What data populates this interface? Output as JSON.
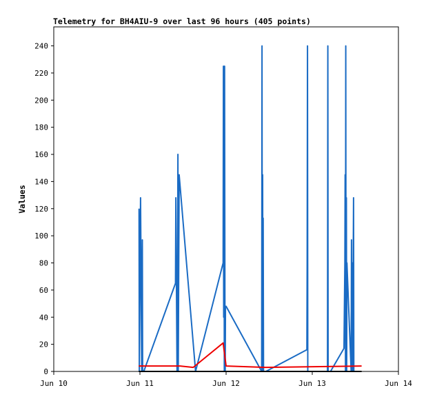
{
  "chart_data": {
    "type": "line",
    "title": "Telemetry for BH4AIU-9 over last 96 hours (405 points)",
    "xlabel": "",
    "ylabel": "Values",
    "xlim": [
      "Jun 10",
      "Jun 14"
    ],
    "ylim": [
      0,
      254
    ],
    "x_ticks": [
      "Jun 10",
      "Jun 11",
      "Jun 12",
      "Jun 13",
      "Jun 14"
    ],
    "y_ticks": [
      0,
      20,
      40,
      60,
      80,
      100,
      120,
      140,
      160,
      180,
      200,
      220,
      240
    ],
    "grid": false,
    "legend": "none",
    "series": [
      {
        "color": "#000000",
        "x": [
          "Jun 10 23:40",
          "Jun 13 13:45"
        ],
        "y": [
          0,
          0
        ]
      },
      {
        "color": "#ee0000",
        "x": [
          "Jun 10 23:40",
          "Jun 11 11:10",
          "Jun 11 14:50",
          "Jun 11 23:10",
          "Jun 12 00:00",
          "Jun 12 11:00",
          "Jun 13 13:45"
        ],
        "y": [
          4,
          4,
          3,
          21,
          4,
          3,
          4
        ]
      },
      {
        "color": "#1a6bc4",
        "x": [
          "Jun 10 23:45",
          "Jun 10 23:50",
          "Jun 11 00:10",
          "Jun 11 00:30",
          "Jun 11 00:40",
          "Jun 11 00:45",
          "Jun 11 01:05",
          "Jun 11 09:55",
          "Jun 11 10:00",
          "Jun 11 10:20",
          "Jun 11 10:25",
          "Jun 11 10:35",
          "Jun 11 10:40",
          "Jun 11 10:55",
          "Jun 11 15:30",
          "Jun 11 23:10",
          "Jun 11 23:15",
          "Jun 11 23:20",
          "Jun 11 23:25",
          "Jun 11 23:30",
          "Jun 11 23:35",
          "Jun 11 23:40",
          "Jun 11 23:45",
          "Jun 11 23:50",
          "Jun 12 00:00",
          "Jun 12 09:55",
          "Jun 12 10:00",
          "Jun 12 10:05",
          "Jun 12 10:10",
          "Jun 12 10:15",
          "Jun 12 10:20",
          "Jun 12 10:25",
          "Jun 12 10:30",
          "Jun 12 10:35",
          "Jun 12 10:40",
          "Jun 12 10:45",
          "Jun 12 10:50",
          "Jun 12 10:55",
          "Jun 12 11:00",
          "Jun 12 11:05",
          "Jun 12 22:30",
          "Jun 12 22:35",
          "Jun 12 22:40",
          "Jun 12 22:45",
          "Jun 12 22:50",
          "Jun 13 04:15",
          "Jun 13 04:20",
          "Jun 13 04:25",
          "Jun 13 04:30",
          "Jun 13 04:35",
          "Jun 13 04:40",
          "Jun 13 04:45",
          "Jun 13 04:50",
          "Jun 13 04:55",
          "Jun 13 05:00",
          "Jun 13 05:05",
          "Jun 13 08:50",
          "Jun 13 09:05",
          "Jun 13 09:10",
          "Jun 13 09:15",
          "Jun 13 09:20",
          "Jun 13 09:25",
          "Jun 13 09:30",
          "Jun 13 09:35",
          "Jun 13 09:40",
          "Jun 13 10:50",
          "Jun 13 10:55",
          "Jun 13 11:00",
          "Jun 13 11:05",
          "Jun 13 11:10",
          "Jun 13 11:15",
          "Jun 13 11:30",
          "Jun 13 11:35",
          "Jun 13 11:40",
          "Jun 13 11:45",
          "Jun 13 11:50"
        ],
        "y": [
          120,
          0,
          128,
          0,
          97,
          0,
          0,
          65,
          128,
          0,
          17,
          160,
          0,
          145,
          0,
          80,
          225,
          40,
          225,
          0,
          225,
          48,
          0,
          48,
          48,
          0,
          240,
          0,
          145,
          0,
          113,
          0,
          0,
          0,
          0,
          0,
          0,
          0,
          0,
          0,
          16,
          80,
          240,
          0,
          0,
          0,
          240,
          0,
          0,
          0,
          0,
          0,
          0,
          0,
          0,
          0,
          17,
          80,
          145,
          0,
          240,
          0,
          128,
          0,
          80,
          0,
          97,
          0,
          17,
          80,
          0,
          128,
          0,
          0,
          0,
          0
        ]
      }
    ]
  }
}
